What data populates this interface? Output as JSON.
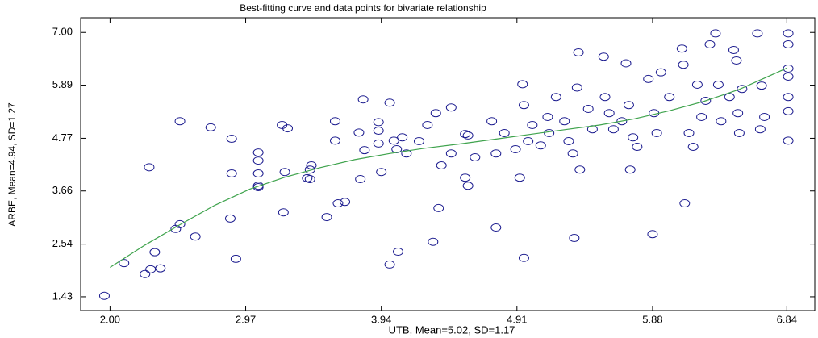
{
  "chart_data": {
    "type": "scatter",
    "title": "Best-fitting curve and data points for bivariate relationship",
    "x_label": "UTB, Mean=5.02, SD=1.17",
    "y_label": "ARBE, Mean=4.94, SD=1.27",
    "xlim": [
      1.79,
      7.04
    ],
    "ylim": [
      1.14,
      7.31
    ],
    "xticks": [
      {
        "value": 2.0,
        "label": "2.00"
      },
      {
        "value": 2.97,
        "label": "2.97"
      },
      {
        "value": 3.94,
        "label": "3.94"
      },
      {
        "value": 4.91,
        "label": "4.91"
      },
      {
        "value": 5.88,
        "label": "5.88"
      },
      {
        "value": 6.84,
        "label": "6.84"
      }
    ],
    "yticks": [
      {
        "value": 1.43,
        "label": "1.43"
      },
      {
        "value": 2.54,
        "label": "2.54"
      },
      {
        "value": 3.66,
        "label": "3.66"
      },
      {
        "value": 4.77,
        "label": "4.77"
      },
      {
        "value": 5.89,
        "label": "5.89"
      },
      {
        "value": 7.0,
        "label": "7.00"
      }
    ],
    "grid": false,
    "series": [
      {
        "color": "#1c1c8f",
        "x": [
          1.96,
          2.1,
          2.25,
          2.29,
          2.36,
          2.32,
          2.28,
          2.47,
          2.5,
          2.5,
          2.61,
          2.72,
          2.87,
          2.86,
          2.87,
          2.9,
          3.06,
          3.06,
          3.06,
          3.06,
          3.06,
          3.23,
          3.27,
          3.25,
          3.24,
          3.43,
          3.44,
          3.41,
          3.43,
          3.55,
          3.61,
          3.61,
          3.63,
          3.68,
          3.81,
          3.78,
          3.82,
          3.79,
          3.92,
          3.92,
          3.92,
          3.94,
          4.0,
          4.0,
          4.06,
          4.03,
          4.05,
          4.09,
          4.12,
          4.21,
          4.27,
          4.31,
          4.35,
          4.33,
          4.37,
          4.44,
          4.44,
          4.54,
          4.54,
          4.56,
          4.56,
          4.61,
          4.73,
          4.76,
          4.76,
          4.82,
          4.9,
          4.93,
          4.95,
          4.96,
          4.96,
          4.99,
          5.02,
          5.08,
          5.13,
          5.14,
          5.19,
          5.25,
          5.28,
          5.31,
          5.32,
          5.34,
          5.35,
          5.36,
          5.42,
          5.45,
          5.53,
          5.54,
          5.57,
          5.6,
          5.66,
          5.69,
          5.71,
          5.72,
          5.74,
          5.77,
          5.85,
          5.88,
          5.89,
          5.91,
          5.94,
          6.0,
          6.09,
          6.1,
          6.11,
          6.14,
          6.17,
          6.2,
          6.23,
          6.26,
          6.29,
          6.33,
          6.35,
          6.37,
          6.43,
          6.46,
          6.48,
          6.49,
          6.5,
          6.52,
          6.63,
          6.65,
          6.66,
          6.68,
          6.85,
          6.85,
          6.85,
          6.85,
          6.85,
          6.85,
          6.85
        ],
        "values": [
          1.45,
          2.14,
          1.91,
          2.01,
          2.03,
          2.37,
          4.16,
          2.86,
          2.96,
          5.13,
          2.7,
          5.0,
          4.76,
          3.08,
          4.03,
          2.23,
          4.47,
          4.3,
          4.03,
          3.77,
          3.74,
          5.05,
          4.98,
          4.06,
          3.21,
          4.11,
          4.2,
          3.93,
          3.91,
          3.11,
          5.13,
          4.72,
          3.4,
          3.43,
          5.59,
          4.89,
          4.52,
          3.91,
          5.11,
          4.93,
          4.66,
          4.06,
          5.52,
          2.11,
          2.38,
          4.72,
          4.54,
          4.79,
          4.45,
          4.71,
          5.05,
          2.59,
          3.3,
          5.3,
          4.2,
          5.42,
          4.45,
          4.86,
          3.94,
          3.77,
          4.83,
          4.37,
          5.13,
          2.89,
          4.45,
          4.88,
          4.54,
          3.94,
          5.91,
          2.25,
          5.47,
          4.71,
          5.05,
          4.62,
          5.22,
          4.88,
          5.64,
          5.13,
          4.71,
          4.45,
          2.67,
          5.84,
          6.58,
          4.11,
          5.39,
          4.96,
          6.49,
          5.64,
          5.3,
          4.96,
          5.13,
          6.35,
          5.47,
          4.11,
          4.79,
          4.59,
          6.02,
          2.75,
          5.3,
          4.88,
          6.16,
          5.64,
          6.66,
          6.32,
          3.4,
          4.88,
          4.59,
          5.9,
          5.22,
          5.56,
          6.75,
          6.98,
          5.9,
          5.13,
          5.64,
          6.63,
          6.41,
          5.3,
          4.88,
          5.81,
          6.98,
          4.96,
          5.88,
          5.22,
          6.98,
          6.75,
          6.24,
          6.07,
          5.64,
          5.34,
          4.72
        ]
      }
    ],
    "curve": {
      "color": "#3fa34d",
      "x": [
        2.0,
        2.25,
        2.5,
        2.75,
        3.0,
        3.25,
        3.5,
        3.75,
        4.0,
        4.25,
        4.5,
        4.75,
        5.0,
        5.25,
        5.5,
        5.75,
        6.0,
        6.25,
        6.5,
        6.84
      ],
      "values": [
        2.05,
        2.52,
        2.95,
        3.36,
        3.7,
        3.95,
        4.15,
        4.32,
        4.45,
        4.56,
        4.65,
        4.75,
        4.85,
        4.95,
        5.05,
        5.18,
        5.35,
        5.55,
        5.8,
        6.25
      ]
    }
  }
}
